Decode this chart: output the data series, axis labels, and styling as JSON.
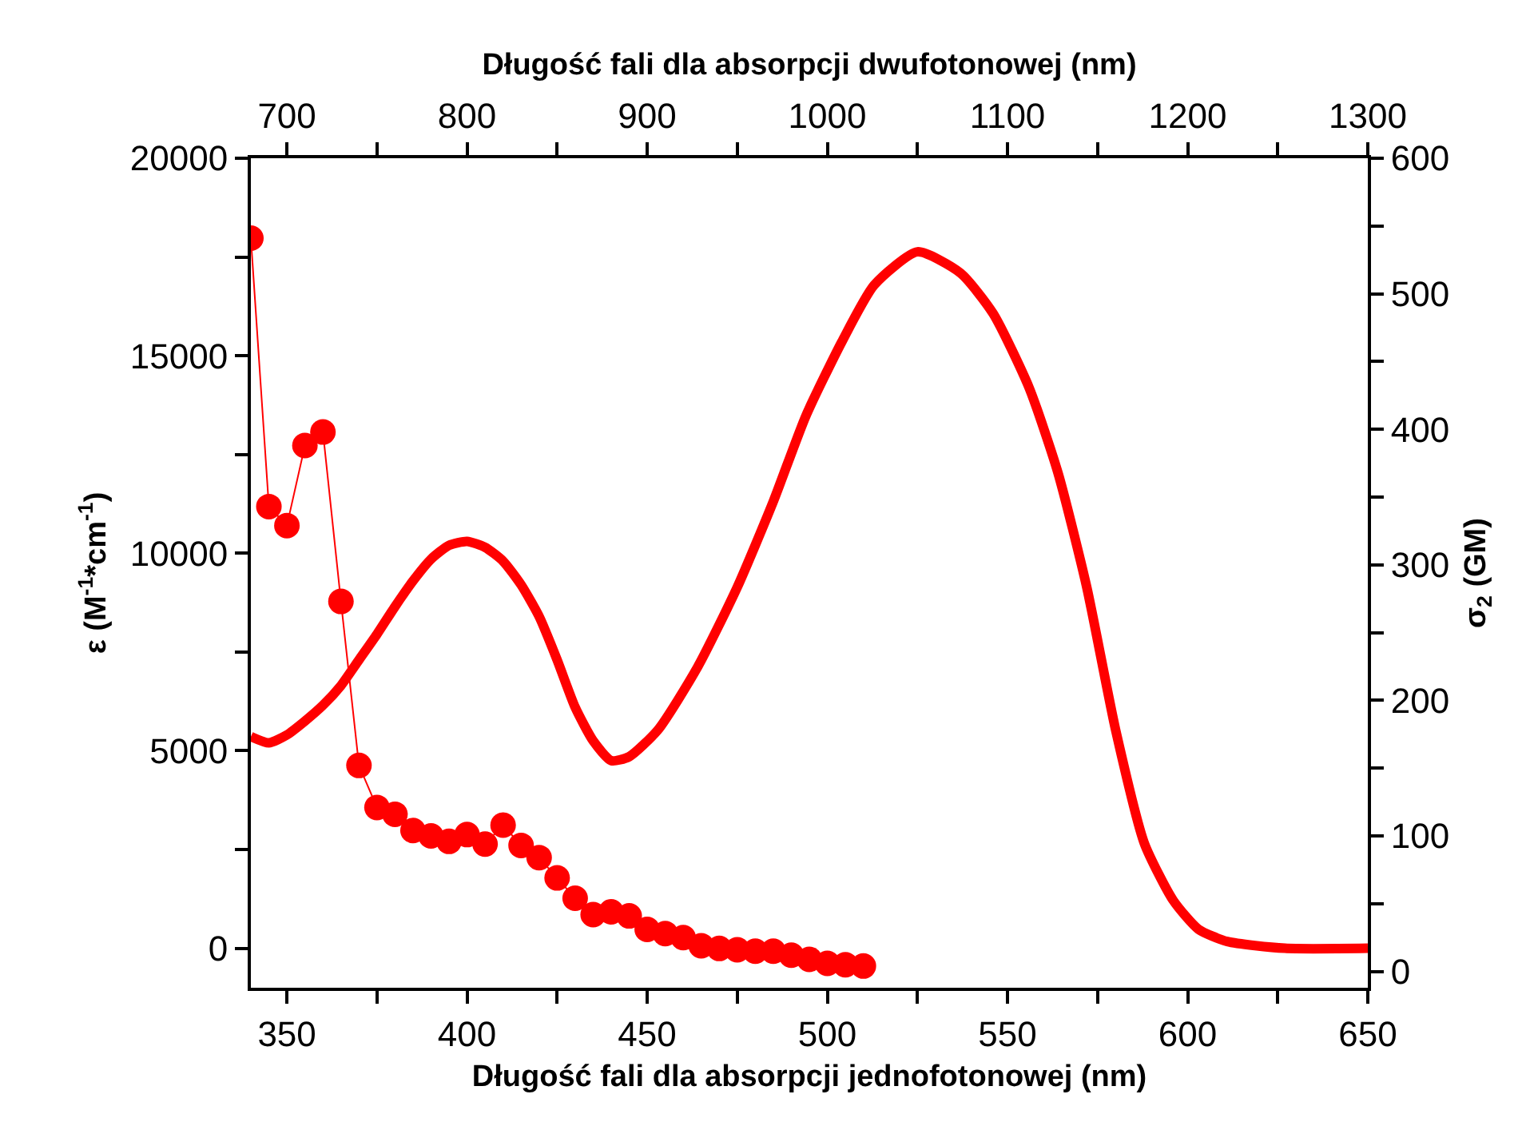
{
  "chart_data": {
    "type": "line",
    "xlabel": "Długość fali dla absorpcji jednofotonowej (nm)",
    "x2label": "Długość fali dla absorpcji dwufotonowej (nm)",
    "ylabel": "ε (M$^{-1}$*cm$^{-1}$)",
    "y2label": "σ$_{2}$ (GM)",
    "xlim": [
      340,
      650
    ],
    "xticks": [
      350,
      {
        "value": 375,
        "label": null
      },
      400,
      {
        "value": 425,
        "label": null
      },
      450,
      {
        "value": 475,
        "label": null
      },
      500,
      {
        "value": 525,
        "label": null
      },
      550,
      {
        "value": 575,
        "label": null
      },
      600,
      {
        "value": 625,
        "label": null
      },
      650
    ],
    "x2lim": [
      680,
      1300
    ],
    "x2ticks": [
      700,
      {
        "value": 750,
        "label": null
      },
      800,
      {
        "value": 850,
        "label": null
      },
      900,
      {
        "value": 950,
        "label": null
      },
      1000,
      {
        "value": 1050,
        "label": null
      },
      1100,
      {
        "value": 1150,
        "label": null
      },
      1200,
      {
        "value": 1250,
        "label": null
      },
      1300
    ],
    "ylim": [
      -1000,
      20000
    ],
    "yticks": [
      0,
      {
        "value": 2500,
        "label": null
      },
      5000,
      {
        "value": 7500,
        "label": null
      },
      10000,
      {
        "value": 12500,
        "label": null
      },
      15000,
      {
        "value": 17500,
        "label": null
      },
      20000
    ],
    "y2lim": [
      -12,
      600
    ],
    "y2ticks": [
      0,
      {
        "value": 50,
        "label": null
      },
      100,
      {
        "value": 150,
        "label": null
      },
      200,
      {
        "value": 250,
        "label": null
      },
      300,
      {
        "value": 350,
        "label": null
      },
      400,
      {
        "value": 450,
        "label": null
      },
      500,
      {
        "value": 550,
        "label": null
      },
      600
    ],
    "grid": false,
    "series": [
      {
        "color": "#ff0000",
        "marker": "none",
        "line_style": "solid",
        "x": [
          340,
          345,
          350,
          355,
          360,
          365,
          370,
          375,
          380,
          385,
          390,
          395,
          400,
          405,
          410,
          415,
          420,
          425,
          430,
          435,
          440,
          445,
          453,
          464,
          475,
          485,
          494,
          504,
          513,
          525,
          537,
          546,
          556,
          564,
          572,
          580,
          588,
          596,
          603,
          611,
          627,
          650
        ],
        "values": [
          5360,
          5200,
          5400,
          5750,
          6150,
          6650,
          7300,
          7950,
          8650,
          9300,
          9850,
          10200,
          10300,
          10150,
          9800,
          9200,
          8400,
          7300,
          6100,
          5250,
          4750,
          4850,
          5530,
          7120,
          9140,
          11310,
          13470,
          15350,
          16790,
          17630,
          17090,
          16070,
          14190,
          12040,
          9140,
          5530,
          2650,
          1210,
          480,
          170,
          0,
          0
        ]
      },
      {
        "color": "#ff0000",
        "marker": "circle",
        "line_style": "solid",
        "axis": "y2",
        "x": [
          340,
          345,
          350,
          355,
          360,
          365,
          370,
          375,
          380,
          385,
          390,
          395,
          400,
          405,
          410,
          415,
          420,
          425,
          430,
          435,
          440,
          445,
          450,
          455,
          460,
          465,
          470,
          475,
          480,
          485,
          490,
          495,
          500,
          505,
          510
        ],
        "values": [
          541,
          343,
          329,
          388,
          398,
          273,
          152,
          121,
          116,
          104,
          100,
          96,
          101,
          94,
          108,
          93,
          84,
          69,
          54,
          42,
          44,
          41,
          31,
          28,
          25,
          19,
          17,
          16,
          15,
          15,
          12,
          9,
          6,
          5,
          4
        ]
      }
    ]
  }
}
